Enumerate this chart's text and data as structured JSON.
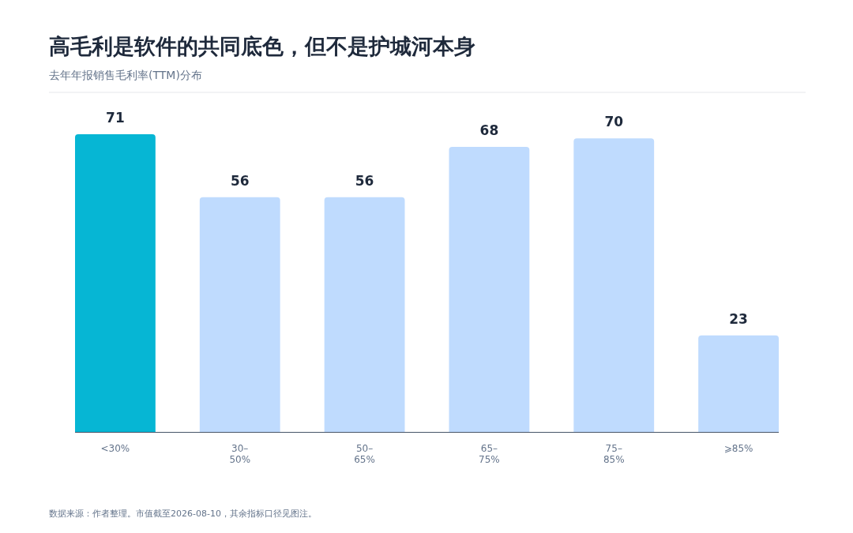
{
  "chart_data": {
    "type": "bar",
    "title": "高毛利是软件的共同底色，但不是护城河本身",
    "subtitle": "去年年报销售毛利率(TTM)分布",
    "categories": [
      "<30%",
      "30–50%",
      "50–65%",
      "65–75%",
      "75–85%",
      "⩾85%"
    ],
    "values": [
      71,
      56,
      56,
      68,
      70,
      23
    ],
    "colors": [
      "#06b6d4",
      "#bfdbfe",
      "#bfdbfe",
      "#bfdbfe",
      "#bfdbfe",
      "#bfdbfe"
    ],
    "data_labels": true,
    "annotations": [
      "数据来源：作者整理。市值截至2026-08-10，其余指标口径见图注。"
    ]
  }
}
